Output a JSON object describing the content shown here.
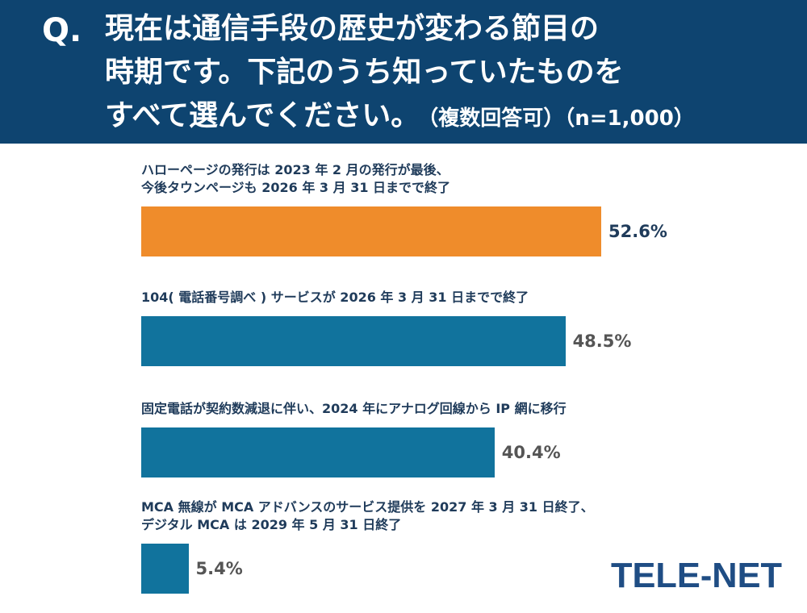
{
  "question": {
    "prefix": "Q.",
    "line1": "現在は通信手段の歴史が変わる節目の",
    "line2": "時期です。下記のうち知っていたものを",
    "line3": "すべて選んでください。",
    "note": "（複数回答可）（n=1,000）"
  },
  "chart_data": {
    "type": "bar",
    "orientation": "horizontal",
    "unit": "%",
    "xlim": [
      0,
      60
    ],
    "categories": [
      {
        "lines": [
          "ハローページの発行は 2023 年 2 月の発行が最後、",
          "今後タウンページも 2026 年 3 月 31 日までで終了"
        ],
        "value": 52.6,
        "label": "52.6%",
        "color": "#ef8c2b",
        "label_color": "#1f3b5a"
      },
      {
        "lines": [
          "104( 電話番号調べ ) サービスが 2026 年 3 月 31 日までで終了"
        ],
        "value": 48.5,
        "label": "48.5%",
        "color": "#11739d",
        "label_color": "#555555"
      },
      {
        "lines": [
          "固定電話が契約数減退に伴い、2024 年にアナログ回線から IP 網に移行"
        ],
        "value": 40.4,
        "label": "40.4%",
        "color": "#11739d",
        "label_color": "#555555"
      },
      {
        "lines": [
          "MCA 無線が MCA アドバンスのサービス提供を 2027 年 3 月 31 日終了、",
          "デジタル MCA は 2029 年 5 月 31 日終了"
        ],
        "value": 5.4,
        "label": "5.4%",
        "color": "#11739d",
        "label_color": "#555555"
      }
    ]
  },
  "logo": {
    "text": "TELE-NET",
    "color": "#1f4d84"
  }
}
